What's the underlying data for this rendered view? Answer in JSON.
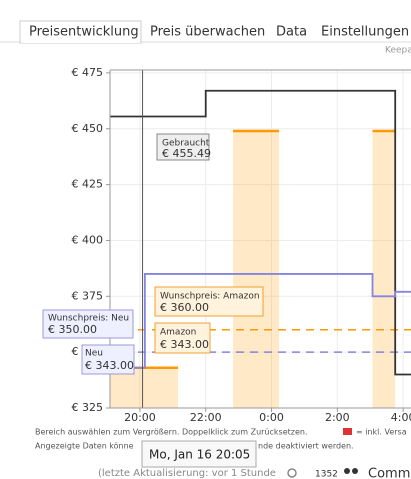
{
  "tabs": [
    "Preisentwicklung",
    "Preis überwachen",
    "Data",
    "Einstellungen"
  ],
  "brand": "Keepa",
  "chart_data": {
    "type": "line",
    "xlim": [
      19.09,
      28.24
    ],
    "xticks": [
      {
        "value": 20,
        "label": "20:00"
      },
      {
        "value": 22,
        "label": "22:00"
      },
      {
        "value": 24,
        "label": "0:00"
      },
      {
        "value": 26,
        "label": "2:00"
      },
      {
        "value": 28,
        "label": "4:00"
      }
    ],
    "ylim": [
      325,
      476.3
    ],
    "yticks": [
      {
        "value": 325,
        "label": "€ 325"
      },
      {
        "value": 350,
        "label": "€ 350"
      },
      {
        "value": 375,
        "label": "€ 375"
      },
      {
        "value": 400,
        "label": "€ 400"
      },
      {
        "value": 425,
        "label": "€ 425"
      },
      {
        "value": 450,
        "label": "€ 450"
      },
      {
        "value": 475,
        "label": "€ 475"
      }
    ],
    "grid": true,
    "series": [
      {
        "name": "Amazon",
        "color": "#ff9900",
        "area": true,
        "cursor_label": "€ 343.00",
        "x": [
          19.09,
          21.16,
          null,
          22.83,
          24.23,
          null,
          27.07,
          27.76
        ],
        "values": [
          343,
          343,
          null,
          449,
          449,
          null,
          449,
          449
        ]
      },
      {
        "name": "Gebraucht",
        "color": "#333333",
        "cursor_label": "€ 455.49",
        "x": [
          19.09,
          22,
          22,
          27.76,
          27.76,
          28.24
        ],
        "values": [
          455.49,
          455.49,
          467,
          467,
          340,
          340
        ]
      },
      {
        "name": "Neu",
        "color": "#8585e0",
        "cursor_label": "€ 343.00",
        "x": [
          19.09,
          20.15,
          20.15,
          27.07,
          27.07,
          27.76,
          27.76,
          28.24
        ],
        "values": [
          343,
          343,
          385,
          385,
          375,
          375,
          377,
          377
        ]
      }
    ],
    "targets": [
      {
        "name": "Wunschpreis: Amazon",
        "value": 360,
        "label": "€ 360.00",
        "color": "#ff9900"
      },
      {
        "name": "Wunschpreis: Neu",
        "value": 350,
        "label": "€ 350.00",
        "color": "#8585e0"
      }
    ],
    "cursor": 20.08,
    "cursor_label": "Mo, Jan 16 20:05"
  },
  "footer": {
    "line1": "Bereich auswählen zum Vergrößern. Doppelklick zum Zurücksetzen.",
    "shipping": "= inkl. Versa",
    "line2a": "Angezeigte Daten könne",
    "line2b": "nde deaktiviert werden.",
    "update": "(letzte Aktualisierung: vor 1 Stunde",
    "count": "1352",
    "community": "Commu"
  }
}
